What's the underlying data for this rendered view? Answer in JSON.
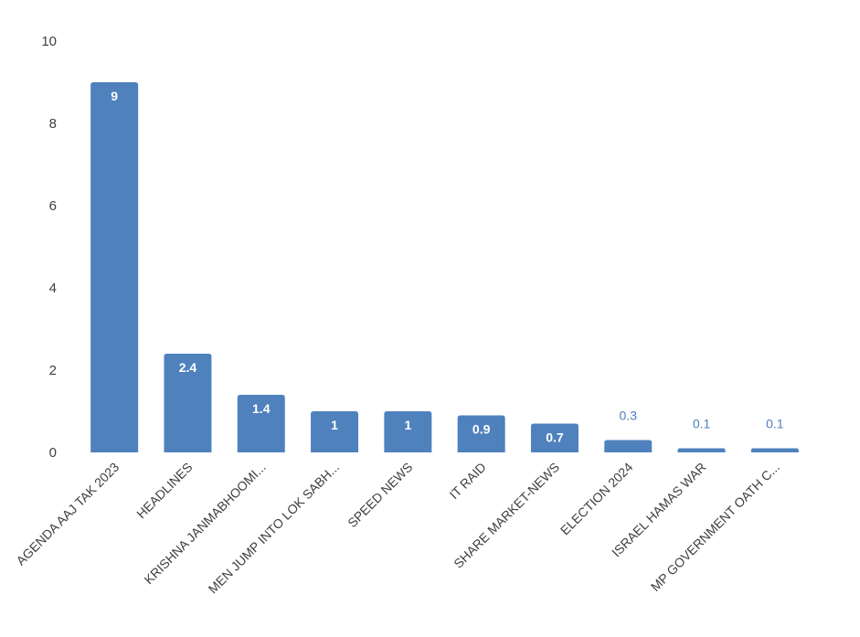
{
  "chart_data": {
    "type": "bar",
    "categories": [
      "AGENDA AAJ TAK 2023",
      "HEADLINES",
      "KRISHNA JANMABHOOMI...",
      "MEN JUMP INTO LOK SABH...",
      "SPEED NEWS",
      "IT RAID",
      "SHARE MARKET-NEWS",
      "ELECTION 2024",
      "ISRAEL HAMAS WAR",
      "MP GOVERNMENT OATH C..."
    ],
    "values": [
      9,
      2.4,
      1.4,
      1,
      1,
      0.9,
      0.7,
      0.3,
      0.1,
      0.1
    ],
    "data_labels": [
      "9",
      "2.4",
      "1.4",
      "1",
      "1",
      "0.9",
      "0.7",
      "0.3",
      "0.1",
      "0.1"
    ],
    "yticks": [
      "0",
      "2",
      "4",
      "6",
      "8",
      "10"
    ],
    "ylim": [
      0,
      10
    ],
    "grid": false,
    "bar_color": "#4f81bd",
    "inside_label_color": "#ffffff",
    "outside_label_color": "#4f81bd"
  }
}
